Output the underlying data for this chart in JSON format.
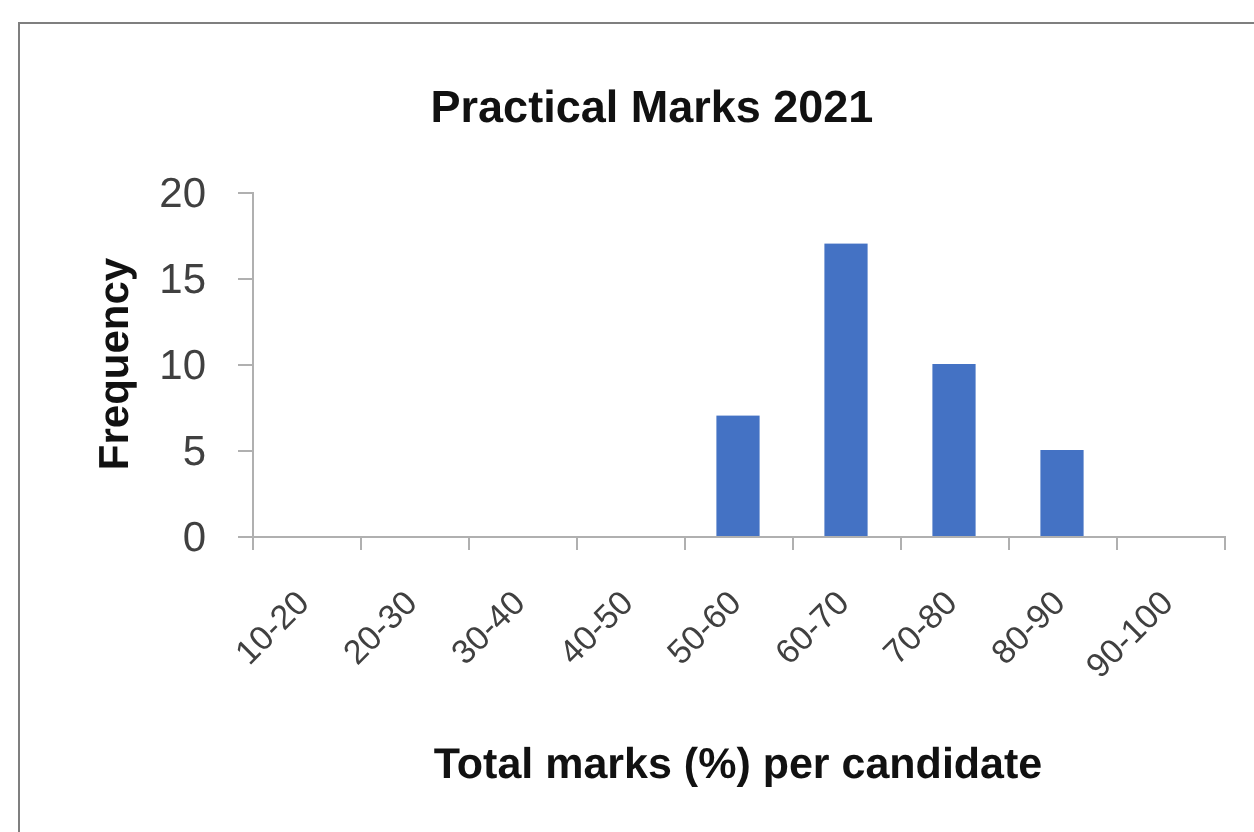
{
  "chart_data": {
    "type": "bar",
    "title": "Practical Marks 2021",
    "xlabel": "Total marks (%) per candidate",
    "ylabel": "Frequency",
    "categories": [
      "10-20",
      "20-30",
      "30-40",
      "40-50",
      "50-60",
      "60-70",
      "70-80",
      "80-90",
      "90-100"
    ],
    "values": [
      0,
      0,
      0,
      0,
      7,
      17,
      10,
      5,
      0
    ],
    "color": "#4472c4",
    "ylim": [
      0,
      20
    ],
    "yticks": [
      0,
      5,
      10,
      15,
      20
    ],
    "grid": false
  }
}
